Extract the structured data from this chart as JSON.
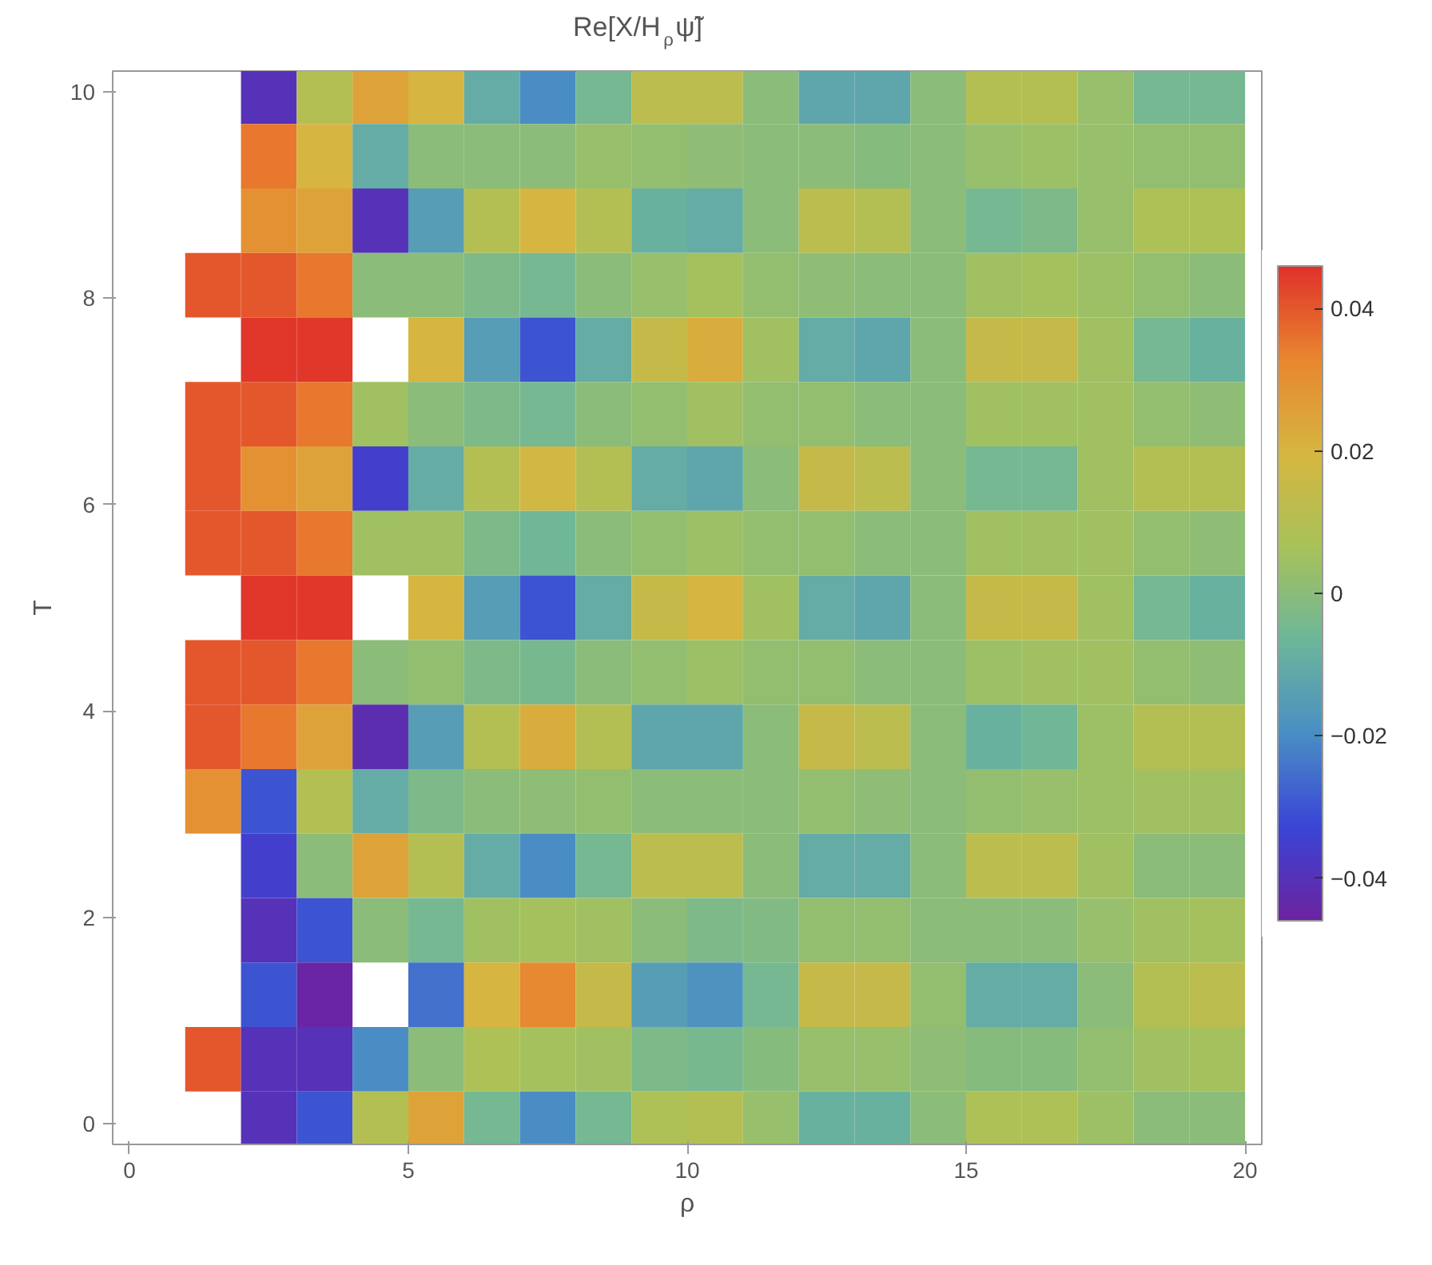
{
  "chart_data": {
    "type": "heatmap",
    "title": "Re[X/H$_{ρ}$ψ̃]",
    "xlabel": "ρ",
    "ylabel": "T",
    "x": [
      0.5,
      1.5,
      2.5,
      3.5,
      4.5,
      5.5,
      6.5,
      7.5,
      8.5,
      9.5,
      10.5,
      11.5,
      12.5,
      13.5,
      14.5,
      15.5,
      16.5,
      17.5,
      18.5,
      19.5
    ],
    "y": [
      10,
      9.375,
      8.75,
      8.125,
      7.5,
      6.875,
      6.25,
      5.625,
      5,
      4.375,
      3.75,
      3.125,
      2.5,
      1.875,
      1.25,
      0.625,
      0
    ],
    "cells": [
      [
        null,
        null,
        -0.04,
        0.01,
        0.025,
        0.02,
        -0.01,
        -0.02,
        -0.005,
        0.012,
        0.012,
        0,
        -0.012,
        -0.012,
        0,
        0.01,
        0.01,
        0.003,
        -0.005,
        -0.005
      ],
      [
        null,
        null,
        0.035,
        0.02,
        -0.01,
        0.0,
        0,
        0,
        0.003,
        0.002,
        0.001,
        0,
        0,
        -0.001,
        0,
        0.003,
        0.004,
        0.003,
        0.002,
        0.002
      ],
      [
        null,
        null,
        0.03,
        0.025,
        -0.04,
        -0.015,
        0.01,
        0.02,
        0.01,
        -0.008,
        -0.01,
        0,
        0.012,
        0.01,
        0,
        -0.005,
        -0.003,
        0.003,
        0.008,
        0.008
      ],
      [
        null,
        0.04,
        0.04,
        0.035,
        0.0,
        0.0,
        -0.003,
        -0.005,
        0.0,
        0.003,
        0.006,
        0.002,
        0.001,
        0,
        0,
        0.005,
        0.006,
        0.004,
        0.002,
        0
      ],
      [
        null,
        null,
        0.045,
        0.045,
        null,
        0.02,
        -0.015,
        -0.03,
        -0.01,
        0.015,
        0.022,
        0.005,
        -0.01,
        -0.012,
        0,
        0.015,
        0.015,
        0.005,
        -0.005,
        -0.008
      ],
      [
        null,
        0.04,
        0.04,
        0.035,
        0.005,
        0.0,
        -0.003,
        -0.005,
        0,
        0.002,
        0.005,
        0.002,
        0.002,
        0,
        0,
        0.005,
        0.005,
        0.005,
        0.002,
        0.001
      ],
      [
        null,
        0.04,
        0.03,
        0.025,
        -0.035,
        -0.01,
        0.01,
        0.018,
        0.01,
        -0.01,
        -0.012,
        0,
        0.015,
        0.012,
        0,
        -0.005,
        -0.005,
        0.005,
        0.01,
        0.01
      ],
      [
        null,
        0.04,
        0.04,
        0.035,
        0.005,
        0.005,
        -0.003,
        -0.006,
        0,
        0.002,
        0.004,
        0.002,
        0.002,
        0,
        0,
        0.005,
        0.005,
        0.005,
        0.002,
        0.001
      ],
      [
        null,
        null,
        0.045,
        0.045,
        null,
        0.02,
        -0.015,
        -0.03,
        -0.01,
        0.015,
        0.02,
        0.005,
        -0.01,
        -0.012,
        0,
        0.015,
        0.015,
        0.005,
        -0.005,
        -0.008
      ],
      [
        null,
        0.04,
        0.04,
        0.035,
        0.0,
        0.002,
        -0.003,
        -0.004,
        0,
        0.002,
        0.004,
        0.002,
        0.002,
        0,
        0,
        0.004,
        0.005,
        0.005,
        0.002,
        0.001
      ],
      [
        null,
        0.04,
        0.035,
        0.025,
        -0.042,
        -0.015,
        0.01,
        0.022,
        0.01,
        -0.012,
        -0.012,
        0,
        0.015,
        0.012,
        0,
        -0.008,
        -0.006,
        0.004,
        0.01,
        0.01
      ],
      [
        null,
        0.03,
        -0.03,
        0.01,
        -0.01,
        -0.003,
        0,
        0.001,
        0.002,
        0,
        0,
        0,
        0.002,
        0.001,
        0,
        0.002,
        0.003,
        0.004,
        0.005,
        0.005
      ],
      [
        null,
        null,
        -0.035,
        0.0,
        0.025,
        0.01,
        -0.01,
        -0.02,
        -0.005,
        0.012,
        0.012,
        0,
        -0.01,
        -0.01,
        0,
        0.012,
        0.012,
        0.005,
        0,
        0
      ],
      [
        null,
        null,
        -0.04,
        -0.03,
        0.0,
        -0.005,
        0.005,
        0.006,
        0.005,
        0,
        -0.003,
        -0.002,
        0.002,
        0.002,
        0,
        0,
        0,
        0.003,
        0.005,
        0.006
      ],
      [
        null,
        null,
        -0.03,
        -0.045,
        null,
        -0.025,
        0.02,
        0.032,
        0.015,
        -0.015,
        -0.018,
        -0.005,
        0.015,
        0.015,
        0.002,
        -0.01,
        -0.01,
        0,
        0.01,
        0.012
      ],
      [
        null,
        0.04,
        -0.04,
        -0.04,
        -0.02,
        0.0,
        0.008,
        0.006,
        0.005,
        -0.003,
        -0.004,
        -0.001,
        0.003,
        0.003,
        0.001,
        -0.001,
        -0.001,
        0.002,
        0.005,
        0.006
      ],
      [
        null,
        null,
        -0.04,
        -0.03,
        0.01,
        0.025,
        -0.005,
        -0.02,
        -0.005,
        0.008,
        0.01,
        0.003,
        -0.008,
        -0.008,
        0,
        0.008,
        0.008,
        0.004,
        0,
        0
      ]
    ],
    "xlim": [
      -0.3,
      20.3
    ],
    "ylim": [
      -0.2,
      10.2
    ],
    "xticks": [
      0,
      5,
      10,
      15,
      20
    ],
    "yticks": [
      0,
      2,
      4,
      6,
      8,
      10
    ],
    "clim": [
      -0.046,
      0.046
    ],
    "cticks": [
      {
        "value": -0.04,
        "label": "−0.04"
      },
      {
        "value": -0.02,
        "label": "−0.02"
      },
      0,
      0.02,
      0.04
    ],
    "grid": false
  }
}
